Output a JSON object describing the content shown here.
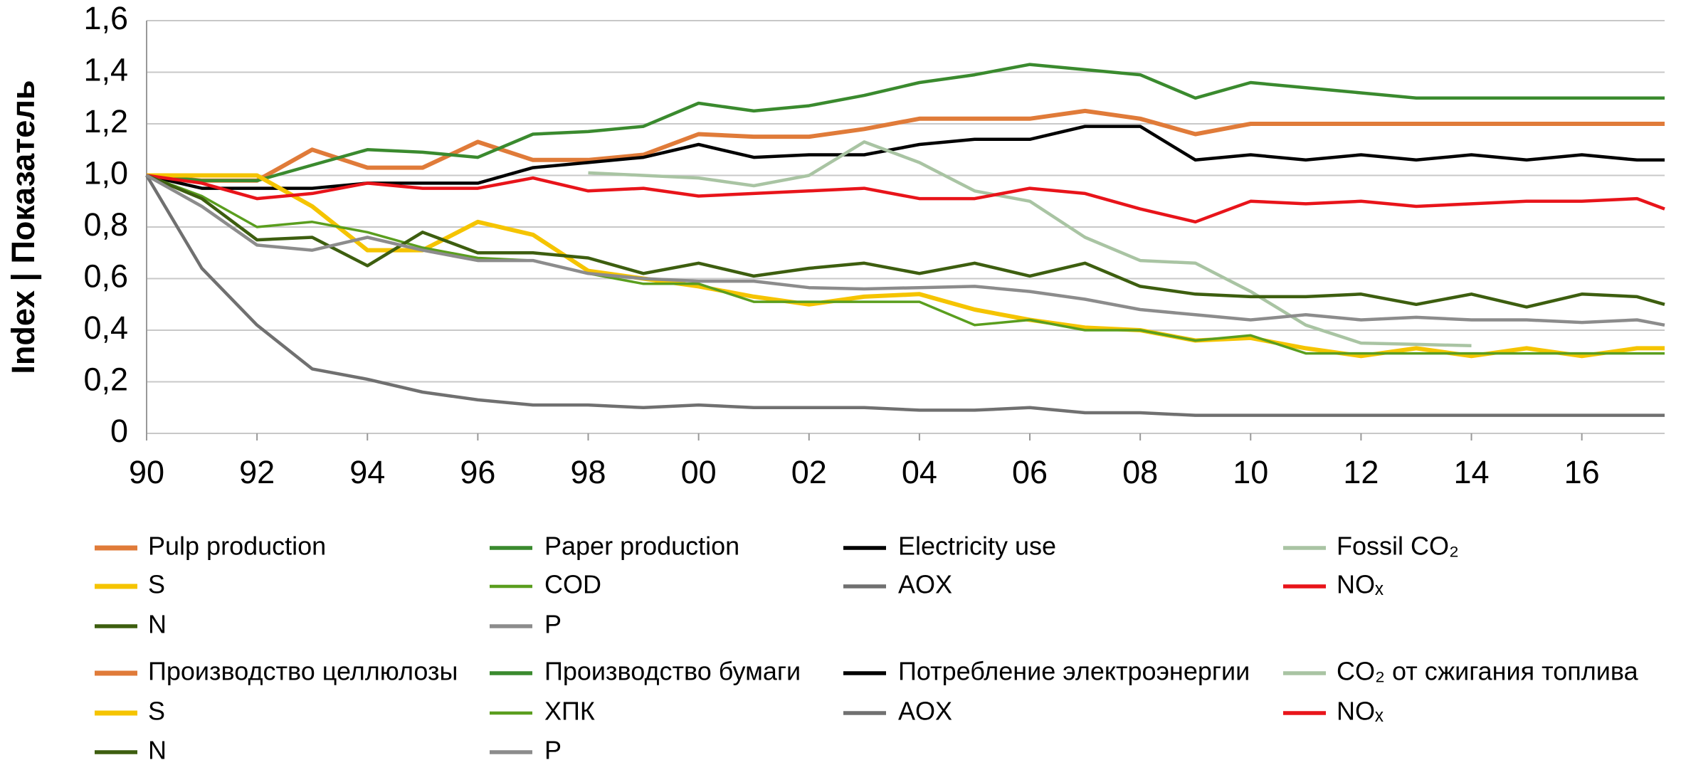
{
  "chart_data": {
    "type": "line",
    "y_label": "Index | Показатель",
    "x": [
      1990,
      1991,
      1992,
      1993,
      1994,
      1995,
      1996,
      1997,
      1998,
      1999,
      2000,
      2001,
      2002,
      2003,
      2004,
      2005,
      2006,
      2007,
      2008,
      2009,
      2010,
      2011,
      2012,
      2013,
      2014,
      2015,
      2016,
      2017,
      2017.5
    ],
    "xlim": [
      1990,
      2017.5
    ],
    "xticks": [
      {
        "value": 1990,
        "label": "90"
      },
      {
        "value": 1992,
        "label": "92"
      },
      {
        "value": 1994,
        "label": "94"
      },
      {
        "value": 1996,
        "label": "96"
      },
      {
        "value": 1998,
        "label": "98"
      },
      {
        "value": 2000,
        "label": "00"
      },
      {
        "value": 2002,
        "label": "02"
      },
      {
        "value": 2004,
        "label": "04"
      },
      {
        "value": 2006,
        "label": "06"
      },
      {
        "value": 2008,
        "label": "08"
      },
      {
        "value": 2010,
        "label": "10"
      },
      {
        "value": 2012,
        "label": "12"
      },
      {
        "value": 2014,
        "label": "14"
      },
      {
        "value": 2016,
        "label": "16"
      }
    ],
    "ylim": [
      0,
      1.6
    ],
    "yticks": [
      0,
      {
        "value": 0.2,
        "label": "0,2"
      },
      {
        "value": 0.4,
        "label": "0,4"
      },
      {
        "value": 0.6,
        "label": "0,6"
      },
      {
        "value": 0.8,
        "label": "0,8"
      },
      {
        "value": 1.0,
        "label": "1,0"
      },
      {
        "value": 1.2,
        "label": "1,2"
      },
      {
        "value": 1.4,
        "label": "1,4"
      },
      {
        "value": 1.6,
        "label": "1,6"
      }
    ],
    "grid": true,
    "series": [
      {
        "name": "Pulp production",
        "name_ru": "Производство целлюлозы",
        "color": "#e07b39",
        "width": 6,
        "values": [
          1.0,
          0.98,
          0.98,
          1.1,
          1.03,
          1.03,
          1.13,
          1.06,
          1.06,
          1.08,
          1.16,
          1.15,
          1.15,
          1.18,
          1.22,
          1.22,
          1.22,
          1.25,
          1.22,
          1.16,
          1.2,
          1.2,
          1.2,
          1.2,
          1.2,
          1.2,
          1.2,
          1.2,
          1.2
        ]
      },
      {
        "name": "Paper production",
        "name_ru": "Производство бумаги",
        "color": "#3a8a2e",
        "width": 4.5,
        "values": [
          1.0,
          0.98,
          0.98,
          1.04,
          1.1,
          1.09,
          1.07,
          1.16,
          1.17,
          1.19,
          1.28,
          1.25,
          1.27,
          1.31,
          1.36,
          1.39,
          1.43,
          1.41,
          1.39,
          1.3,
          1.36,
          1.34,
          1.32,
          1.3,
          1.3,
          1.3,
          1.3,
          1.3,
          1.3
        ]
      },
      {
        "name": "Electricity use",
        "name_ru": "Потребление электроэнергии",
        "color": "#000000",
        "width": 4.5,
        "values": [
          1.0,
          0.95,
          0.95,
          0.95,
          0.97,
          0.97,
          0.97,
          1.03,
          1.05,
          1.07,
          1.12,
          1.07,
          1.08,
          1.08,
          1.12,
          1.14,
          1.14,
          1.19,
          1.19,
          1.06,
          1.08,
          1.06,
          1.08,
          1.06,
          1.08,
          1.06,
          1.08,
          1.06,
          1.06
        ]
      },
      {
        "name": "Fossil CO₂",
        "name_ru": "CO₂ от сжигания топлива",
        "color": "#a9c4a3",
        "width": 4.5,
        "values": [
          null,
          null,
          null,
          null,
          null,
          null,
          null,
          null,
          1.01,
          1.0,
          0.99,
          0.96,
          1.0,
          1.13,
          1.05,
          0.94,
          0.9,
          0.76,
          0.67,
          0.66,
          0.55,
          0.42,
          0.35,
          0.345,
          0.34,
          null,
          null,
          null,
          null
        ]
      },
      {
        "name": "S",
        "name_ru": "S",
        "color": "#f5c400",
        "width": 6,
        "values": [
          1.0,
          1.0,
          1.0,
          0.88,
          0.71,
          0.71,
          0.82,
          0.77,
          0.63,
          0.6,
          0.57,
          0.53,
          0.5,
          0.53,
          0.54,
          0.48,
          0.44,
          0.41,
          0.4,
          0.36,
          0.37,
          0.33,
          0.3,
          0.33,
          0.3,
          0.33,
          0.3,
          0.33,
          0.33
        ]
      },
      {
        "name": "COD",
        "name_ru": "ХПК",
        "color": "#5a9e1e",
        "width": 3.5,
        "values": [
          1.0,
          0.92,
          0.8,
          0.82,
          0.78,
          0.72,
          0.68,
          0.67,
          0.62,
          0.58,
          0.58,
          0.51,
          0.51,
          0.51,
          0.51,
          0.42,
          0.44,
          0.4,
          0.4,
          0.36,
          0.38,
          0.31,
          0.31,
          0.31,
          0.31,
          0.31,
          0.31,
          0.31,
          0.31
        ]
      },
      {
        "name": "AOX",
        "name_ru": "AOX",
        "color": "#707070",
        "width": 4.5,
        "values": [
          1.0,
          0.64,
          0.42,
          0.25,
          0.21,
          0.16,
          0.13,
          0.11,
          0.11,
          0.1,
          0.11,
          0.1,
          0.1,
          0.1,
          0.09,
          0.09,
          0.1,
          0.08,
          0.08,
          0.07,
          0.07,
          0.07,
          0.07,
          0.07,
          0.07,
          0.07,
          0.07,
          0.07,
          0.07
        ]
      },
      {
        "name": "NOₓ",
        "name_ru": "NOₓ",
        "color": "#e8141a",
        "width": 4.5,
        "values": [
          1.0,
          0.97,
          0.91,
          0.93,
          0.97,
          0.95,
          0.95,
          0.99,
          0.94,
          0.95,
          0.92,
          0.93,
          0.94,
          0.95,
          0.91,
          0.91,
          0.95,
          0.93,
          0.87,
          0.82,
          0.9,
          0.89,
          0.9,
          0.88,
          0.89,
          0.9,
          0.9,
          0.91,
          0.87
        ]
      },
      {
        "name": "N",
        "name_ru": "N",
        "color": "#3d5e0f",
        "width": 4.5,
        "values": [
          1.0,
          0.91,
          0.75,
          0.76,
          0.65,
          0.78,
          0.7,
          0.7,
          0.68,
          0.62,
          0.66,
          0.61,
          0.64,
          0.66,
          0.62,
          0.66,
          0.61,
          0.66,
          0.57,
          0.54,
          0.53,
          0.53,
          0.54,
          0.5,
          0.54,
          0.49,
          0.54,
          0.53,
          0.5
        ]
      },
      {
        "name": "P",
        "name_ru": "P",
        "color": "#8c8c8c",
        "width": 4.5,
        "values": [
          1.0,
          0.88,
          0.73,
          0.71,
          0.76,
          0.71,
          0.67,
          0.67,
          0.62,
          0.6,
          0.59,
          0.59,
          0.565,
          0.56,
          0.565,
          0.57,
          0.55,
          0.52,
          0.48,
          0.46,
          0.44,
          0.46,
          0.44,
          0.45,
          0.44,
          0.44,
          0.43,
          0.44,
          0.42
        ]
      }
    ]
  }
}
